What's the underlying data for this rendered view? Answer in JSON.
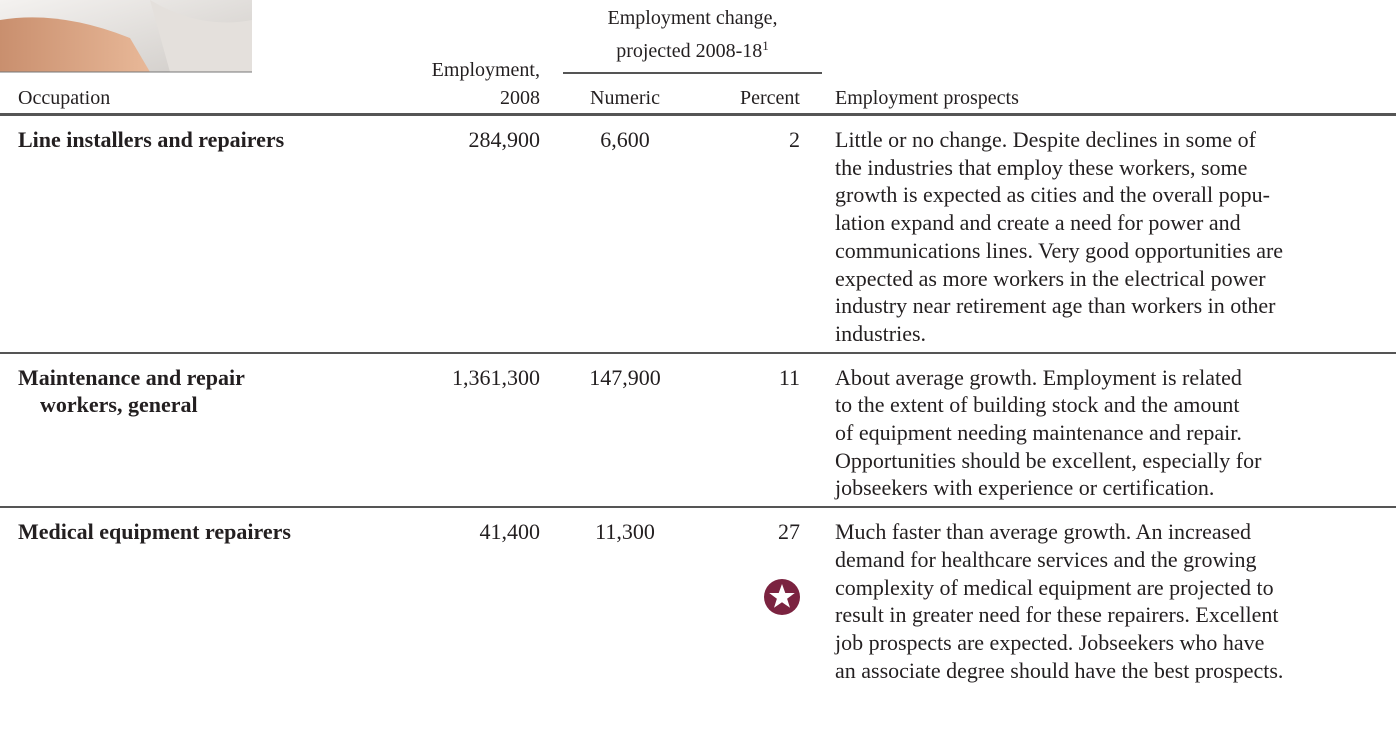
{
  "table": {
    "header": {
      "occupation": "Occupation",
      "employment": [
        "Employment,",
        "2008"
      ],
      "change_group": [
        "Employment change,",
        "projected 2008-18"
      ],
      "footnote_marker": "1",
      "numeric": "Numeric",
      "percent": "Percent",
      "prospects": "Employment prospects"
    },
    "rows": [
      {
        "occupation": [
          "Line installers and repairers"
        ],
        "employment": "284,900",
        "numeric": "6,600",
        "percent": "2",
        "prospects": [
          "Little or no change. Despite declines in some of",
          "the industries that employ these workers, some",
          "growth is expected as cities and the overall popu-",
          "lation expand and create a need for power and",
          "communications lines. Very good opportunities are",
          "expected as more workers in the electrical power",
          "industry near retirement age than workers in other",
          "industries."
        ]
      },
      {
        "occupation": [
          "Maintenance and repair",
          "workers, general"
        ],
        "employment": "1,361,300",
        "numeric": "147,900",
        "percent": "11",
        "prospects": [
          "About average growth. Employment is related",
          "to the extent of building stock and the amount",
          "of equipment needing maintenance and repair.",
          "Opportunities should be excellent, especially for",
          "jobseekers with experience or certification."
        ]
      },
      {
        "occupation": [
          "Medical equipment repairers"
        ],
        "employment": "41,400",
        "numeric": "11,300",
        "percent": "27",
        "prospects": [
          "Much faster than average growth. An increased",
          "demand for healthcare services and the growing",
          "complexity of medical equipment are projected to",
          "result in greater need for these repairers. Excellent",
          "job prospects are expected. Jobseekers who have",
          "an associate degree should have the best prospects."
        ]
      }
    ]
  }
}
